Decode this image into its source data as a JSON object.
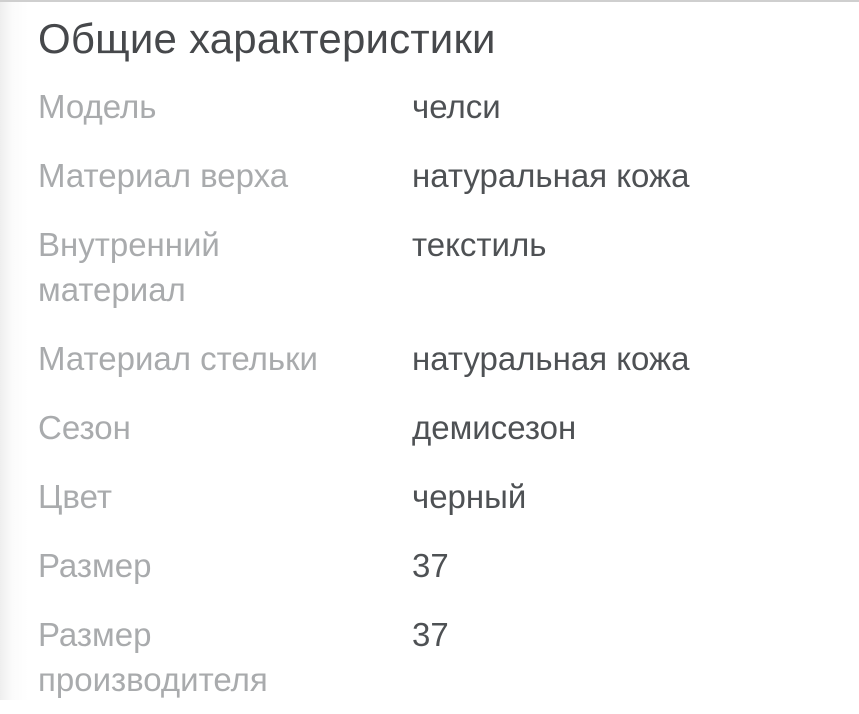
{
  "section": {
    "title": "Общие характеристики",
    "items": [
      {
        "label": "Модель",
        "value": "челси"
      },
      {
        "label": "Материал верха",
        "value": "натуральная кожа"
      },
      {
        "label": "Внутренний материал",
        "value": "текстиль"
      },
      {
        "label": "Материал стельки",
        "value": "натуральная кожа"
      },
      {
        "label": "Сезон",
        "value": "демисезон"
      },
      {
        "label": "Цвет",
        "value": "черный"
      },
      {
        "label": "Размер",
        "value": "37"
      },
      {
        "label": "Размер производителя",
        "value": "37"
      }
    ]
  },
  "colors": {
    "title_text": "#46484b",
    "label_text": "#a9abad",
    "value_text": "#4e5154",
    "background": "#ffffff",
    "top_divider": "#cfcfcf"
  }
}
